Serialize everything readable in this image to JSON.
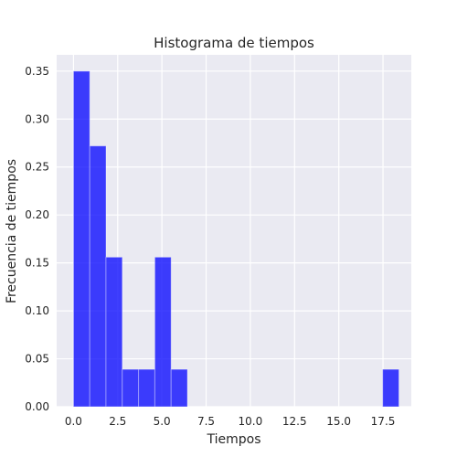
{
  "chart_data": {
    "type": "bar",
    "title": "Histograma de tiempos",
    "xlabel": "Tiempos",
    "ylabel": "Frecuencia de tiempos",
    "xlim": [
      -0.95,
      19.1
    ],
    "ylim": [
      0,
      0.367
    ],
    "xticks": [
      0,
      2.5,
      5,
      7.5,
      10,
      12.5,
      15,
      17.5
    ],
    "xtick_labels": [
      "0.0",
      "2.5",
      "5.0",
      "7.5",
      "10.0",
      "12.5",
      "15.0",
      "17.5"
    ],
    "yticks": [
      0,
      0.05,
      0.1,
      0.15,
      0.2,
      0.25,
      0.3,
      0.35
    ],
    "ytick_labels": [
      "0.00",
      "0.05",
      "0.10",
      "0.15",
      "0.20",
      "0.25",
      "0.30",
      "0.35"
    ],
    "grid": true,
    "bins": [
      {
        "x0": 0.0,
        "x1": 0.92,
        "value": 0.35
      },
      {
        "x0": 0.92,
        "x1": 1.84,
        "value": 0.272
      },
      {
        "x0": 1.84,
        "x1": 2.76,
        "value": 0.156
      },
      {
        "x0": 2.76,
        "x1": 3.68,
        "value": 0.039
      },
      {
        "x0": 3.68,
        "x1": 4.6,
        "value": 0.039
      },
      {
        "x0": 4.6,
        "x1": 5.52,
        "value": 0.156
      },
      {
        "x0": 5.52,
        "x1": 6.44,
        "value": 0.039
      },
      {
        "x0": 17.48,
        "x1": 18.4,
        "value": 0.039
      }
    ],
    "colors": {
      "bar": "#0000ff",
      "background": "#eaeaf2",
      "grid": "#ffffff"
    }
  }
}
